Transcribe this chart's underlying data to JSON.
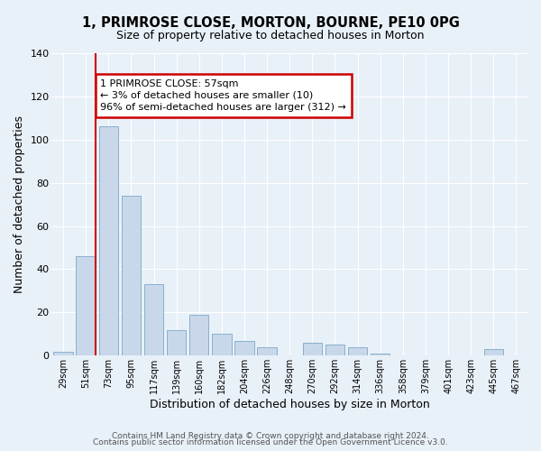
{
  "title": "1, PRIMROSE CLOSE, MORTON, BOURNE, PE10 0PG",
  "subtitle": "Size of property relative to detached houses in Morton",
  "xlabel": "Distribution of detached houses by size in Morton",
  "ylabel": "Number of detached properties",
  "bar_color": "#c8d8ea",
  "bar_edge_color": "#8ab0cc",
  "background_color": "#e8f0f8",
  "grid_color": "white",
  "categories": [
    "29sqm",
    "51sqm",
    "73sqm",
    "95sqm",
    "117sqm",
    "139sqm",
    "160sqm",
    "182sqm",
    "204sqm",
    "226sqm",
    "248sqm",
    "270sqm",
    "292sqm",
    "314sqm",
    "336sqm",
    "358sqm",
    "379sqm",
    "401sqm",
    "423sqm",
    "445sqm",
    "467sqm"
  ],
  "values": [
    2,
    46,
    106,
    74,
    33,
    12,
    19,
    10,
    7,
    4,
    0,
    6,
    5,
    4,
    1,
    0,
    0,
    0,
    0,
    3,
    0
  ],
  "ylim": [
    0,
    140
  ],
  "yticks": [
    0,
    20,
    40,
    60,
    80,
    100,
    120,
    140
  ],
  "vline_color": "#cc0000",
  "annotation_text": "1 PRIMROSE CLOSE: 57sqm\n← 3% of detached houses are smaller (10)\n96% of semi-detached houses are larger (312) →",
  "annotation_box_color": "#cc0000",
  "footer1": "Contains HM Land Registry data © Crown copyright and database right 2024.",
  "footer2": "Contains public sector information licensed under the Open Government Licence v3.0."
}
